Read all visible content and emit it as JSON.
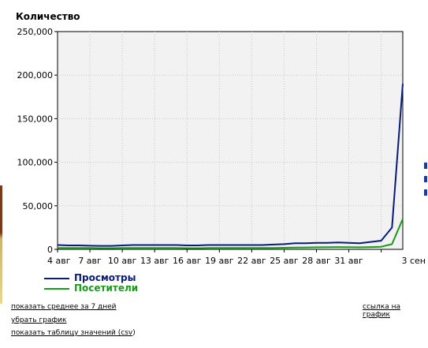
{
  "chart_data": {
    "type": "line",
    "title": "Количество",
    "x_tick_labels": [
      "4 авг",
      "7 авг",
      "10 авг",
      "13 авг",
      "16 авг",
      "19 авг",
      "22 авг",
      "25 авг",
      "28 авг",
      "31 авг",
      "3 сен"
    ],
    "y_tick_labels": [
      "0",
      "50,000",
      "100,000",
      "150,000",
      "200,000",
      "250,000"
    ],
    "ylim": [
      0,
      250000
    ],
    "xlim": [
      0,
      32
    ],
    "grid": true,
    "legend_position": "bottom-left",
    "series": [
      {
        "name": "Просмотры",
        "color": "#0a1a7a",
        "x": [
          0,
          1,
          2,
          3,
          4,
          5,
          6,
          7,
          8,
          9,
          10,
          11,
          12,
          13,
          14,
          15,
          16,
          17,
          18,
          19,
          20,
          21,
          22,
          23,
          24,
          25,
          26,
          27,
          28,
          29,
          30,
          31,
          32
        ],
        "values": [
          5000,
          4500,
          4500,
          4200,
          4000,
          4000,
          4500,
          5000,
          5000,
          5000,
          5000,
          5000,
          4500,
          4500,
          5000,
          5000,
          5000,
          5000,
          5000,
          5000,
          5500,
          6000,
          7000,
          7000,
          7500,
          7500,
          8000,
          7500,
          7000,
          8500,
          10000,
          25000,
          190000
        ]
      },
      {
        "name": "Посетители",
        "color": "#1a9a1a",
        "x": [
          0,
          1,
          2,
          3,
          4,
          5,
          6,
          7,
          8,
          9,
          10,
          11,
          12,
          13,
          14,
          15,
          16,
          17,
          18,
          19,
          20,
          21,
          22,
          23,
          24,
          25,
          26,
          27,
          28,
          29,
          30,
          31,
          32
        ],
        "values": [
          1500,
          1500,
          1500,
          1500,
          1400,
          1400,
          1500,
          1500,
          1500,
          1500,
          1500,
          1500,
          1400,
          1400,
          1500,
          1500,
          1500,
          1500,
          1500,
          1500,
          1600,
          1800,
          2000,
          2200,
          2400,
          2500,
          2600,
          2500,
          2400,
          2600,
          3000,
          6000,
          35000
        ]
      }
    ]
  },
  "links": {
    "avg7": "показать среднее за 7 дней",
    "hide_graph": "убрать график",
    "show_table_prefix": "показать таблицу значений (",
    "csv": "csv",
    "show_table_suffix": ")",
    "graph_link": "ссылка на график"
  }
}
